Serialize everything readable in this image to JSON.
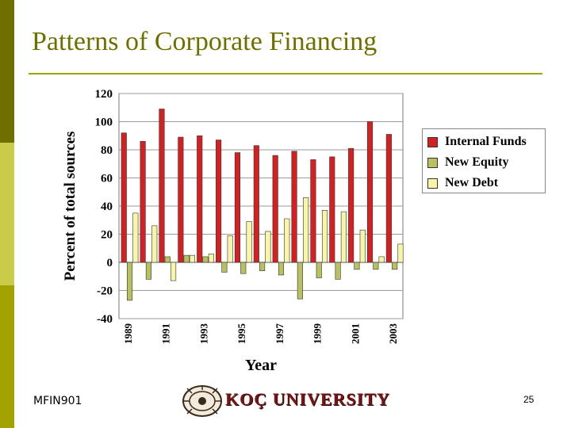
{
  "slide": {
    "title": "Patterns of Corporate Financing",
    "footer_left": "MFIN901",
    "page_number": "25",
    "logo_text": "KOÇ UNIVERSITY"
  },
  "colors": {
    "accent": "#6f6f00",
    "internal_funds": "#d42020",
    "new_equity": "#b8c060",
    "new_debt": "#f6f6a6"
  },
  "chart_data": {
    "type": "bar",
    "xlabel": "Year",
    "ylabel": "Percent of total sources",
    "ylim": [
      -40,
      120
    ],
    "yticks": [
      120,
      100,
      80,
      60,
      40,
      20,
      0,
      -20,
      -40
    ],
    "grid": true,
    "legend_position": "right",
    "categories": [
      "1989",
      "1990",
      "1991",
      "1992",
      "1993",
      "1994",
      "1995",
      "1996",
      "1997",
      "1998",
      "1999",
      "2000",
      "2001",
      "2002",
      "2003"
    ],
    "tick_labels": [
      "1989",
      "1991",
      "1993",
      "1995",
      "1997",
      "1999",
      "2001",
      "2003"
    ],
    "series": [
      {
        "name": "Internal Funds",
        "values": [
          92,
          86,
          109,
          89,
          90,
          87,
          78,
          83,
          76,
          79,
          73,
          75,
          81,
          100,
          91
        ]
      },
      {
        "name": "New Equity",
        "values": [
          -27,
          -12,
          4,
          5,
          4,
          -7,
          -8,
          -6,
          -9,
          -26,
          -11,
          -12,
          -5,
          -5,
          -5
        ]
      },
      {
        "name": "New Debt",
        "values": [
          35,
          26,
          -13,
          5,
          6,
          19,
          29,
          22,
          31,
          46,
          37,
          36,
          23,
          4,
          13
        ]
      }
    ]
  }
}
